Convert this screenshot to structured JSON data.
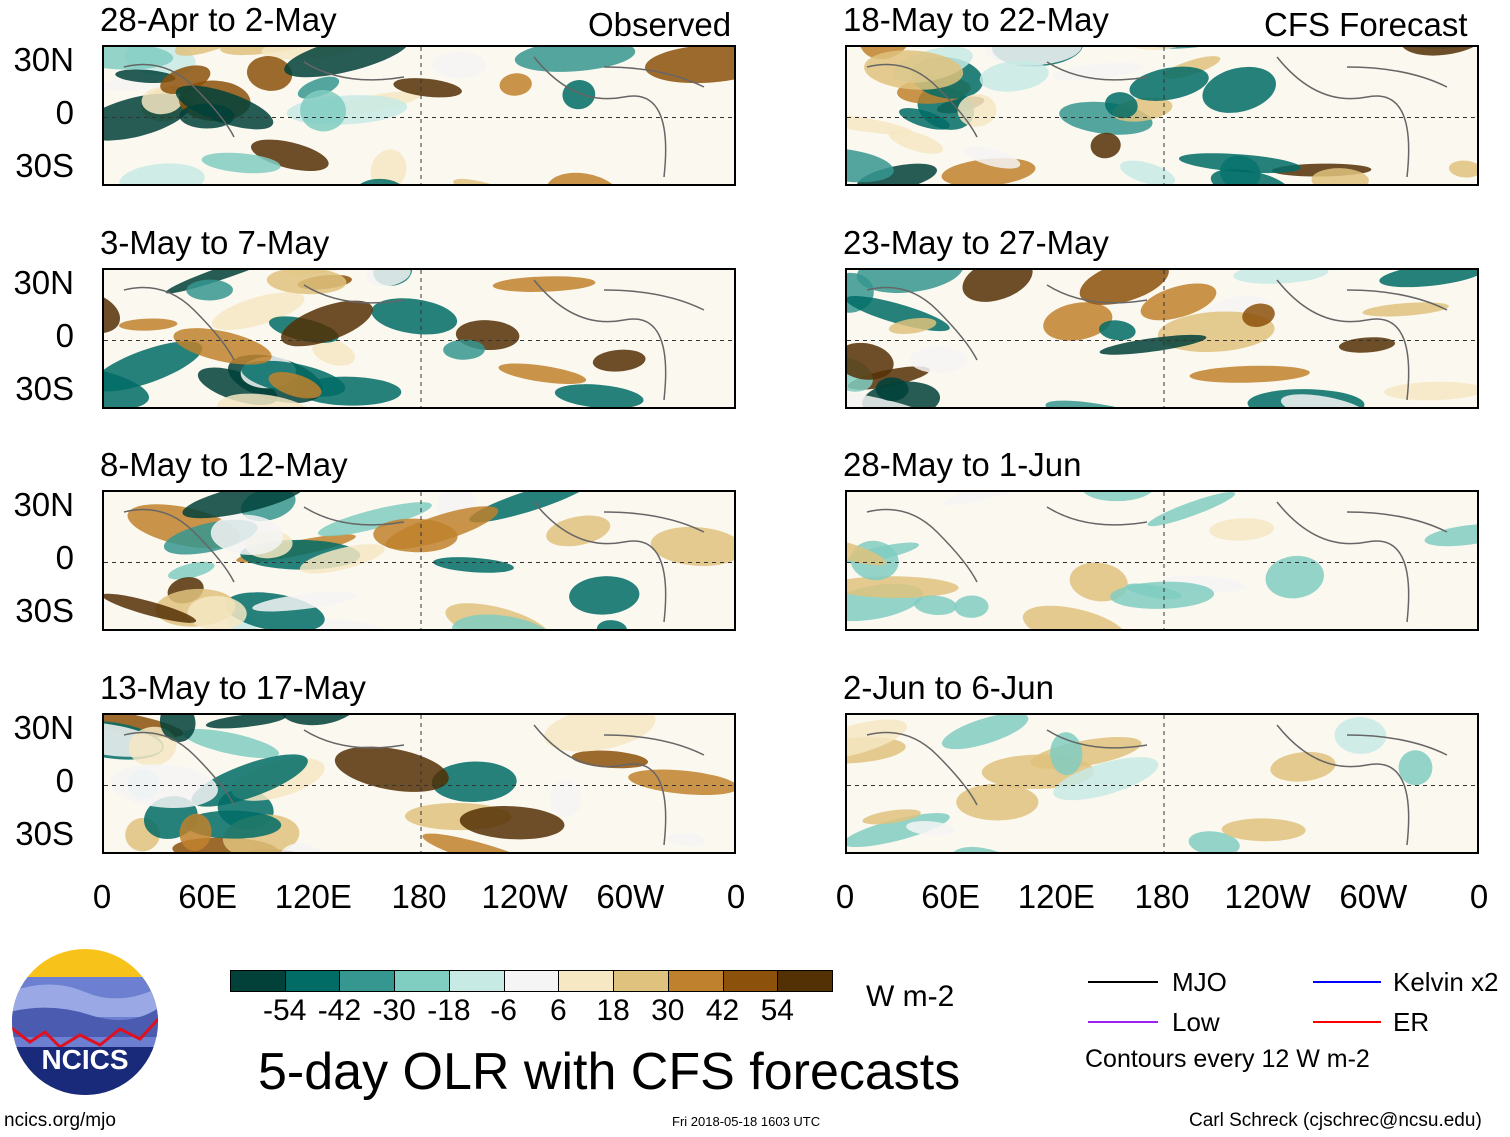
{
  "headers": {
    "observed": "Observed",
    "forecast": "CFS Forecast"
  },
  "panels": {
    "observed": [
      "28-Apr to 2-May",
      "3-May to 7-May",
      "8-May to 12-May",
      "13-May to 17-May"
    ],
    "forecast": [
      "18-May to 22-May",
      "23-May to 27-May",
      "28-May to 1-Jun",
      "2-Jun to 6-Jun"
    ]
  },
  "lat_labels": [
    "30N",
    "0",
    "30S"
  ],
  "lon_labels": [
    "0",
    "60E",
    "120E",
    "180",
    "120W",
    "60W",
    "0"
  ],
  "colorbar": {
    "colors": [
      "#01413a",
      "#016c66",
      "#35978f",
      "#80cdc1",
      "#c7eae5",
      "#f5f5f5",
      "#f6e8c3",
      "#dfc27d",
      "#bf812d",
      "#8c510a",
      "#543005"
    ],
    "labels": [
      "-54",
      "-42",
      "-30",
      "-18",
      "-6",
      "6",
      "18",
      "30",
      "42",
      "54"
    ],
    "units": "W m-2"
  },
  "legend": {
    "mjo": "MJO",
    "kelvin": "Kelvin x2",
    "low": "Low",
    "er": "ER",
    "contours": "Contours every 12 W m-2",
    "colors": {
      "mjo": "#000000",
      "kelvin": "#0000ff",
      "low": "#a020f0",
      "er": "#ff0000"
    }
  },
  "title": "5-day OLR with CFS forecasts",
  "logo_text": "NCICS",
  "footer": {
    "url": "ncics.org/mjo",
    "timestamp": "Fri 2018-05-18 1603 UTC",
    "author": "Carl Schreck (cjschrec@ncsu.edu)"
  }
}
